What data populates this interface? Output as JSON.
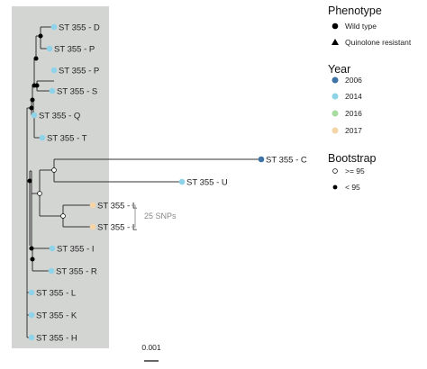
{
  "tree": {
    "tips": [
      {
        "label": "ST 355 - D",
        "year": "2014",
        "phenotype": "Wild type"
      },
      {
        "label": "ST 355 - P",
        "year": "2014",
        "phenotype": "Wild type"
      },
      {
        "label": "ST 355 - P",
        "year": "2014",
        "phenotype": "Wild type"
      },
      {
        "label": "ST 355 - S",
        "year": "2014",
        "phenotype": "Wild type"
      },
      {
        "label": "ST 355 - Q",
        "year": "2014",
        "phenotype": "Wild type"
      },
      {
        "label": "ST 355 - T",
        "year": "2014",
        "phenotype": "Wild type"
      },
      {
        "label": "ST 355 - C",
        "year": "2006",
        "phenotype": "Wild type"
      },
      {
        "label": "ST 355 - U",
        "year": "2014",
        "phenotype": "Wild type"
      },
      {
        "label": "ST 355 - L",
        "year": "2017",
        "phenotype": "Wild type"
      },
      {
        "label": "ST 355 - L",
        "year": "2017",
        "phenotype": "Wild type"
      },
      {
        "label": "ST 355 - I",
        "year": "2014",
        "phenotype": "Wild type"
      },
      {
        "label": "ST 355 - R",
        "year": "2014",
        "phenotype": "Wild type"
      },
      {
        "label": "ST 355 - L",
        "year": "2014",
        "phenotype": "Wild type"
      },
      {
        "label": "ST 355 - K",
        "year": "2014",
        "phenotype": "Wild type"
      },
      {
        "label": "ST 355 - H",
        "year": "2014",
        "phenotype": "Wild type"
      }
    ],
    "snp_annotation": "25 SNPs",
    "scale_bar": "0.001"
  },
  "legend": {
    "phenotype": {
      "title": "Phenotype",
      "items": [
        {
          "label": "Wild type",
          "shape": "circle"
        },
        {
          "label": "Quinolone resistant",
          "shape": "triangle"
        }
      ]
    },
    "year": {
      "title": "Year",
      "items": [
        {
          "label": "2006",
          "color": "#3f73a6"
        },
        {
          "label": "2014",
          "color": "#8fd3e8"
        },
        {
          "label": "2016",
          "color": "#a8dca0"
        },
        {
          "label": "2017",
          "color": "#f5d5a8"
        }
      ]
    },
    "bootstrap": {
      "title": "Bootstrap",
      "items": [
        {
          "label": ">= 95",
          "fill": "#ffffff"
        },
        {
          "label": "< 95",
          "fill": "#000000"
        }
      ]
    }
  },
  "colors": {
    "highlight": "#d3d5d3",
    "branch": "#333333"
  }
}
